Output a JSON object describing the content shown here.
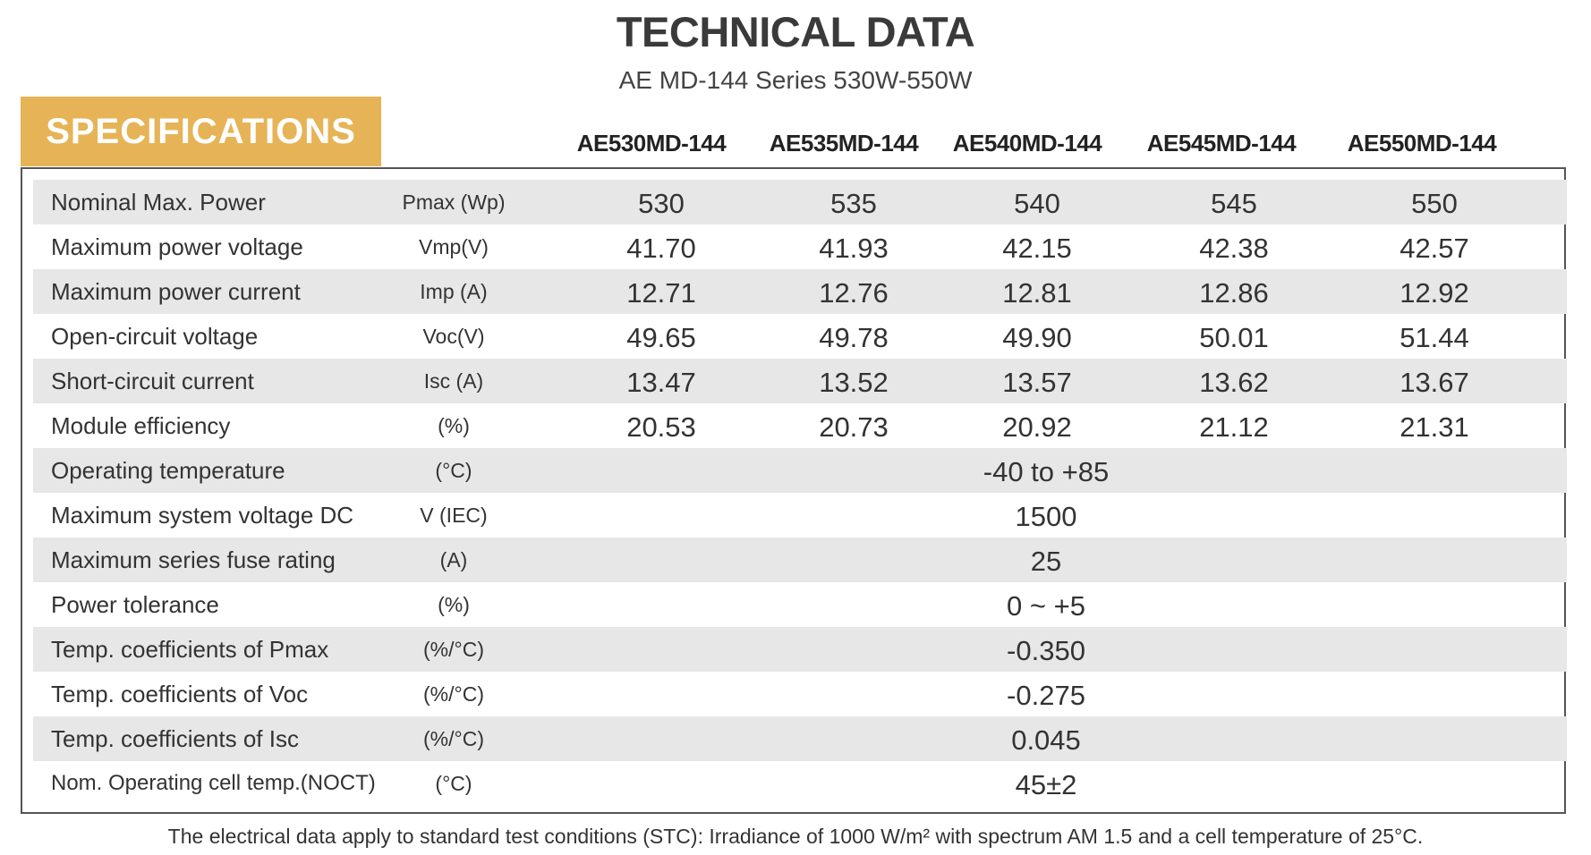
{
  "header": {
    "title": "TECHNICAL DATA",
    "subtitle": "AE MD-144 Series 530W-550W",
    "section_label": "SPECIFICATIONS"
  },
  "models": [
    "AE530MD-144",
    "AE535MD-144",
    "AE540MD-144",
    "AE545MD-144",
    "AE550MD-144"
  ],
  "rows": [
    {
      "label": "Nominal Max. Power",
      "unit": "Pmax (Wp)",
      "values": [
        "530",
        "535",
        "540",
        "545",
        "550"
      ]
    },
    {
      "label": "Maximum power voltage",
      "unit": "Vmp(V)",
      "values": [
        "41.70",
        "41.93",
        "42.15",
        "42.38",
        "42.57"
      ]
    },
    {
      "label": "Maximum power current",
      "unit": "Imp (A)",
      "values": [
        "12.71",
        "12.76",
        "12.81",
        "12.86",
        "12.92"
      ]
    },
    {
      "label": "Open-circuit voltage",
      "unit": "Voc(V)",
      "values": [
        "49.65",
        "49.78",
        "49.90",
        "50.01",
        "51.44"
      ]
    },
    {
      "label": "Short-circuit current",
      "unit": "Isc (A)",
      "values": [
        "13.47",
        "13.52",
        "13.57",
        "13.62",
        "13.67"
      ]
    },
    {
      "label": "Module efficiency",
      "unit": "(%)",
      "values": [
        "20.53",
        "20.73",
        "20.92",
        "21.12",
        "21.31"
      ]
    },
    {
      "label": "Operating temperature",
      "unit": "(°C)",
      "value": "-40 to +85"
    },
    {
      "label": "Maximum system voltage DC",
      "unit": "V (IEC)",
      "value": "1500"
    },
    {
      "label": "Maximum series fuse rating",
      "unit": "(A)",
      "value": "25"
    },
    {
      "label": "Power tolerance",
      "unit": "(%)",
      "value": "0 ~ +5"
    },
    {
      "label": "Temp. coefficients of Pmax",
      "unit": "(%/°C)",
      "value": "-0.350"
    },
    {
      "label": "Temp. coefficients of Voc",
      "unit": "(%/°C)",
      "value": "-0.275"
    },
    {
      "label": "Temp. coefficients of Isc",
      "unit": "(%/°C)",
      "value": "0.045"
    },
    {
      "label": "Nom. Operating cell temp.(NOCT)",
      "unit": "(°C)",
      "value": "45±2"
    }
  ],
  "footnote": "The electrical data apply to standard test conditions (STC): Irradiance of 1000 W/m²  with spectrum AM 1.5 and a cell temperature of 25°C.",
  "colors": {
    "accent": "#e6b456",
    "row_shade": "#e7e7e7",
    "border": "#555555"
  }
}
